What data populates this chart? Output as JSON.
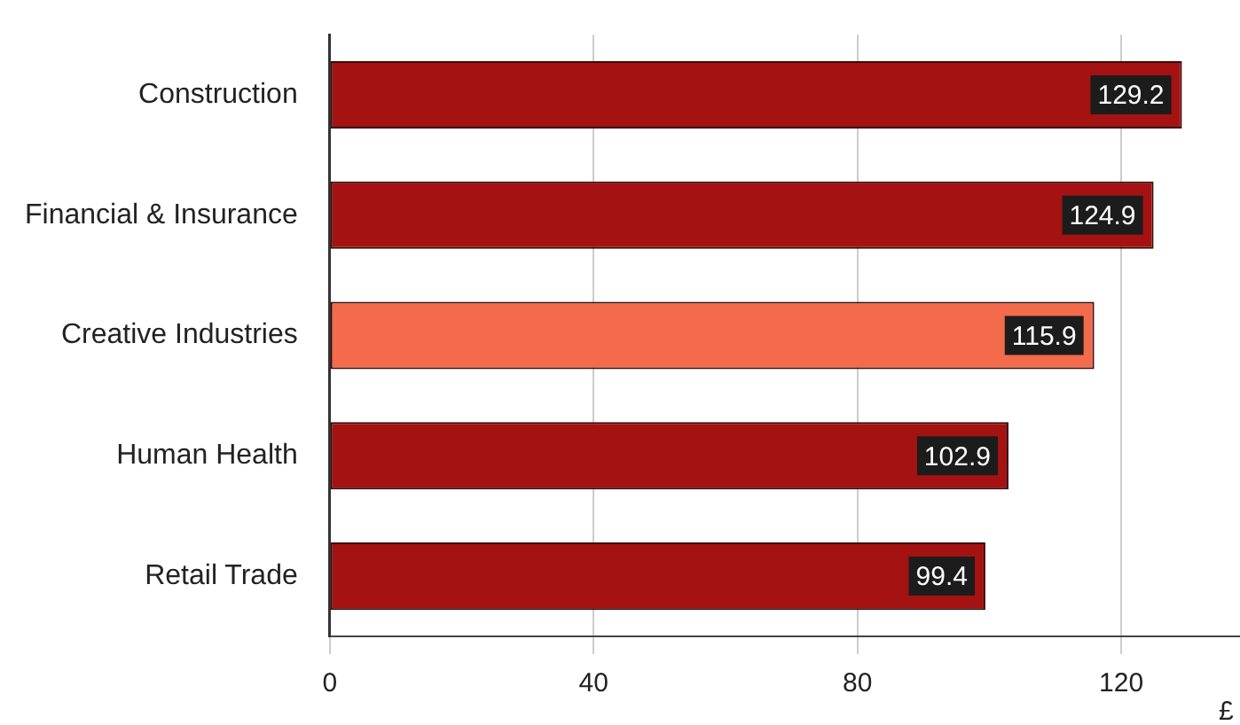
{
  "chart_data": {
    "type": "bar",
    "orientation": "horizontal",
    "xlabel": "£",
    "categories": [
      "Construction",
      "Financial & Insurance",
      "Creative Industries",
      "Human Health",
      "Retail Trade"
    ],
    "values": [
      129.2,
      124.9,
      115.9,
      102.9,
      99.4
    ],
    "colors": [
      "#a51212",
      "#a51212",
      "#f36b4b",
      "#a51212",
      "#a51212"
    ],
    "xlim": [
      0,
      138
    ],
    "xticks": [
      0,
      40,
      80,
      120
    ],
    "grid": "x",
    "data_labels": true
  }
}
